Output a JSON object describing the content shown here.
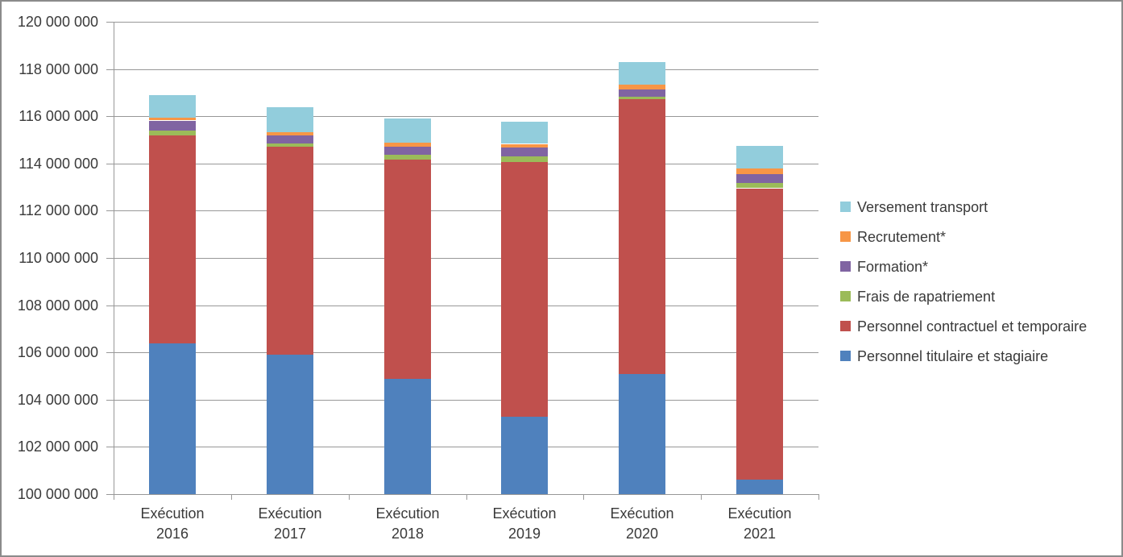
{
  "chart_data": {
    "type": "bar",
    "stacked": true,
    "title": "",
    "xlabel": "",
    "ylabel": "",
    "grid": true,
    "ylim": [
      100000000,
      120000000
    ],
    "ytick_step": 2000000,
    "ytick_labels": [
      "100 000 000",
      "102 000 000",
      "104 000 000",
      "106 000 000",
      "108 000 000",
      "110 000 000",
      "112 000 000",
      "114 000 000",
      "116 000 000",
      "118 000 000",
      "120 000 000"
    ],
    "categories": [
      "Exécution 2016",
      "Exécution 2017",
      "Exécution 2018",
      "Exécution 2019",
      "Exécution 2020",
      "Exécution 2021"
    ],
    "category_label_lines": [
      [
        "Exécution",
        "2016"
      ],
      [
        "Exécution",
        "2017"
      ],
      [
        "Exécution",
        "2018"
      ],
      [
        "Exécution",
        "2019"
      ],
      [
        "Exécution",
        "2020"
      ],
      [
        "Exécution",
        "2021"
      ]
    ],
    "series": [
      {
        "name": "Personnel titulaire et stagiaire",
        "color": "#4F81BD",
        "values": [
          106370000,
          105920000,
          104870000,
          103280000,
          105100000,
          100600000
        ]
      },
      {
        "name": "Personnel contractuel et temporaire",
        "color": "#C0504D",
        "values": [
          8820000,
          8790000,
          9310000,
          10780000,
          11610000,
          12350000
        ]
      },
      {
        "name": "Frais de rapatriement",
        "color": "#9BBB59",
        "values": [
          220000,
          130000,
          200000,
          250000,
          120000,
          230000
        ]
      },
      {
        "name": "Formation*",
        "color": "#8064A2",
        "values": [
          410000,
          360000,
          330000,
          380000,
          310000,
          370000
        ]
      },
      {
        "name": "Recrutement*",
        "color": "#F79646",
        "values": [
          130000,
          140000,
          180000,
          140000,
          190000,
          230000
        ]
      },
      {
        "name": "Versement transport",
        "color": "#92CDDC",
        "values": [
          960000,
          1030000,
          1000000,
          940000,
          970000,
          980000
        ]
      }
    ],
    "legend": {
      "position": "right",
      "order_top_to_bottom": [
        5,
        4,
        3,
        2,
        1,
        0
      ]
    },
    "colors": {
      "gridline": "#989898",
      "axis": "#989898",
      "frame_border": "#8B8B8B",
      "text": "#3A3A3A"
    }
  }
}
